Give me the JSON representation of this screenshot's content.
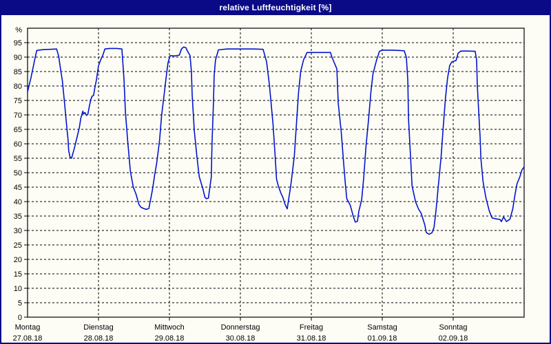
{
  "window": {
    "title": "relative Luftfeuchtigkeit [%]"
  },
  "colors": {
    "titlebar_bg": "#0a0a87",
    "titlebar_text": "#ffffff",
    "window_border": "#0a0a87",
    "client_bg": "#fdfdf5",
    "plot_frame": "#000000",
    "grid": "#000000",
    "tick_text": "#000000",
    "line": "#0013ce"
  },
  "chart_data": {
    "type": "line",
    "title": "relative Luftfeuchtigkeit [%]",
    "ylabel": "%",
    "ylim": [
      0,
      100
    ],
    "ytick_step": 5,
    "ytick_labels": [
      "0",
      "5",
      "10",
      "15",
      "20",
      "25",
      "30",
      "35",
      "40",
      "45",
      "50",
      "55",
      "60",
      "65",
      "70",
      "75",
      "80",
      "85",
      "90",
      "95"
    ],
    "x_range_days": [
      0,
      7
    ],
    "grid": "dashed",
    "legend": "none",
    "x_days": [
      {
        "label": "Montag",
        "date": "27.08.18"
      },
      {
        "label": "Dienstag",
        "date": "28.08.18"
      },
      {
        "label": "Mittwoch",
        "date": "29.08.18"
      },
      {
        "label": "Donnerstag",
        "date": "30.08.18"
      },
      {
        "label": "Freitag",
        "date": "31.08.18"
      },
      {
        "label": "Samstag",
        "date": "01.09.18"
      },
      {
        "label": "Sonntag",
        "date": "02.09.18"
      }
    ],
    "series": [
      {
        "name": "relative Luftfeuchtigkeit",
        "unit": "%",
        "color": "#0013ce",
        "points_days_value": [
          [
            0.0,
            78.0
          ],
          [
            0.05,
            83.0
          ],
          [
            0.1,
            89.0
          ],
          [
            0.13,
            92.3
          ],
          [
            0.22,
            92.6
          ],
          [
            0.32,
            92.7
          ],
          [
            0.41,
            92.8
          ],
          [
            0.44,
            90.2
          ],
          [
            0.47,
            85.0
          ],
          [
            0.49,
            81.9
          ],
          [
            0.52,
            74.4
          ],
          [
            0.55,
            66.4
          ],
          [
            0.57,
            61.7
          ],
          [
            0.58,
            57.7
          ],
          [
            0.6,
            55.3
          ],
          [
            0.62,
            55.0
          ],
          [
            0.66,
            58.5
          ],
          [
            0.7,
            62.5
          ],
          [
            0.73,
            65.6
          ],
          [
            0.75,
            68.8
          ],
          [
            0.78,
            71.3
          ],
          [
            0.79,
            70.3
          ],
          [
            0.81,
            70.8
          ],
          [
            0.83,
            69.8
          ],
          [
            0.85,
            70.2
          ],
          [
            0.87,
            72.8
          ],
          [
            0.89,
            75.2
          ],
          [
            0.91,
            76.5
          ],
          [
            0.93,
            76.7
          ],
          [
            0.95,
            79.5
          ],
          [
            0.97,
            82.0
          ],
          [
            1.0,
            87.0
          ],
          [
            1.03,
            89.0
          ],
          [
            1.06,
            90.6
          ],
          [
            1.09,
            92.8
          ],
          [
            1.16,
            93.0
          ],
          [
            1.26,
            93.0
          ],
          [
            1.33,
            92.8
          ],
          [
            1.36,
            82.0
          ],
          [
            1.38,
            71.0
          ],
          [
            1.41,
            61.5
          ],
          [
            1.45,
            50.5
          ],
          [
            1.49,
            45.0
          ],
          [
            1.53,
            42.5
          ],
          [
            1.57,
            39.0
          ],
          [
            1.6,
            38.0
          ],
          [
            1.64,
            37.6
          ],
          [
            1.67,
            37.3
          ],
          [
            1.71,
            37.6
          ],
          [
            1.76,
            44.0
          ],
          [
            1.79,
            49.0
          ],
          [
            1.82,
            53.3
          ],
          [
            1.86,
            61.0
          ],
          [
            1.89,
            70.0
          ],
          [
            1.93,
            78.0
          ],
          [
            1.96,
            84.3
          ],
          [
            1.98,
            88.0
          ],
          [
            2.01,
            90.5
          ],
          [
            2.08,
            90.4
          ],
          [
            2.14,
            90.7
          ],
          [
            2.17,
            92.8
          ],
          [
            2.2,
            93.5
          ],
          [
            2.23,
            93.3
          ],
          [
            2.26,
            91.8
          ],
          [
            2.29,
            90.6
          ],
          [
            2.31,
            85.0
          ],
          [
            2.32,
            77.0
          ],
          [
            2.35,
            64.5
          ],
          [
            2.39,
            54.9
          ],
          [
            2.42,
            48.6
          ],
          [
            2.47,
            44.6
          ],
          [
            2.5,
            41.5
          ],
          [
            2.52,
            41.0
          ],
          [
            2.55,
            41.2
          ],
          [
            2.57,
            45.0
          ],
          [
            2.59,
            48.5
          ],
          [
            2.6,
            60.0
          ],
          [
            2.62,
            74.0
          ],
          [
            2.63,
            83.5
          ],
          [
            2.65,
            89.0
          ],
          [
            2.69,
            92.5
          ],
          [
            2.81,
            92.8
          ],
          [
            3.0,
            92.8
          ],
          [
            3.19,
            92.8
          ],
          [
            3.32,
            92.7
          ],
          [
            3.37,
            88.3
          ],
          [
            3.41,
            80.3
          ],
          [
            3.46,
            66.8
          ],
          [
            3.49,
            55.7
          ],
          [
            3.51,
            47.8
          ],
          [
            3.53,
            45.8
          ],
          [
            3.57,
            43.0
          ],
          [
            3.6,
            41.4
          ],
          [
            3.63,
            39.0
          ],
          [
            3.66,
            37.5
          ],
          [
            3.71,
            45.4
          ],
          [
            3.76,
            55.7
          ],
          [
            3.79,
            66.8
          ],
          [
            3.82,
            77.9
          ],
          [
            3.85,
            85.1
          ],
          [
            3.89,
            89.0
          ],
          [
            3.94,
            91.6
          ],
          [
            4.02,
            91.6
          ],
          [
            4.15,
            91.6
          ],
          [
            4.27,
            91.6
          ],
          [
            4.29,
            90.0
          ],
          [
            4.36,
            85.9
          ],
          [
            4.38,
            74.0
          ],
          [
            4.42,
            64.5
          ],
          [
            4.45,
            54.9
          ],
          [
            4.48,
            46.2
          ],
          [
            4.5,
            41.0
          ],
          [
            4.55,
            38.7
          ],
          [
            4.59,
            35.0
          ],
          [
            4.62,
            32.9
          ],
          [
            4.65,
            33.2
          ],
          [
            4.67,
            36.7
          ],
          [
            4.71,
            40.6
          ],
          [
            4.74,
            48.6
          ],
          [
            4.77,
            58.9
          ],
          [
            4.81,
            69.2
          ],
          [
            4.84,
            77.9
          ],
          [
            4.87,
            84.3
          ],
          [
            4.92,
            89.0
          ],
          [
            4.96,
            92.0
          ],
          [
            5.0,
            92.4
          ],
          [
            5.13,
            92.4
          ],
          [
            5.23,
            92.3
          ],
          [
            5.31,
            92.2
          ],
          [
            5.34,
            89.9
          ],
          [
            5.36,
            82.0
          ],
          [
            5.37,
            68.8
          ],
          [
            5.4,
            54.9
          ],
          [
            5.42,
            45.4
          ],
          [
            5.47,
            39.9
          ],
          [
            5.51,
            37.5
          ],
          [
            5.55,
            35.9
          ],
          [
            5.6,
            31.9
          ],
          [
            5.62,
            29.3
          ],
          [
            5.66,
            28.7
          ],
          [
            5.7,
            29.2
          ],
          [
            5.73,
            31.1
          ],
          [
            5.76,
            37.5
          ],
          [
            5.79,
            45.4
          ],
          [
            5.83,
            55.7
          ],
          [
            5.86,
            66.0
          ],
          [
            5.89,
            75.6
          ],
          [
            5.92,
            82.7
          ],
          [
            5.95,
            87.1
          ],
          [
            5.98,
            88.3
          ],
          [
            6.01,
            88.6
          ],
          [
            6.04,
            88.8
          ],
          [
            6.07,
            91.4
          ],
          [
            6.11,
            92.1
          ],
          [
            6.2,
            92.1
          ],
          [
            6.31,
            92.0
          ],
          [
            6.33,
            89.0
          ],
          [
            6.34,
            80.3
          ],
          [
            6.36,
            70.8
          ],
          [
            6.38,
            62.1
          ],
          [
            6.39,
            54.9
          ],
          [
            6.42,
            47.0
          ],
          [
            6.46,
            41.4
          ],
          [
            6.51,
            36.7
          ],
          [
            6.55,
            34.3
          ],
          [
            6.61,
            34.0
          ],
          [
            6.66,
            33.8
          ],
          [
            6.68,
            33.1
          ],
          [
            6.71,
            34.7
          ],
          [
            6.75,
            33.1
          ],
          [
            6.8,
            33.9
          ],
          [
            6.84,
            37.5
          ],
          [
            6.87,
            42.2
          ],
          [
            6.9,
            46.2
          ],
          [
            6.94,
            48.6
          ],
          [
            6.97,
            51.0
          ],
          [
            7.0,
            52.0
          ]
        ]
      }
    ]
  }
}
